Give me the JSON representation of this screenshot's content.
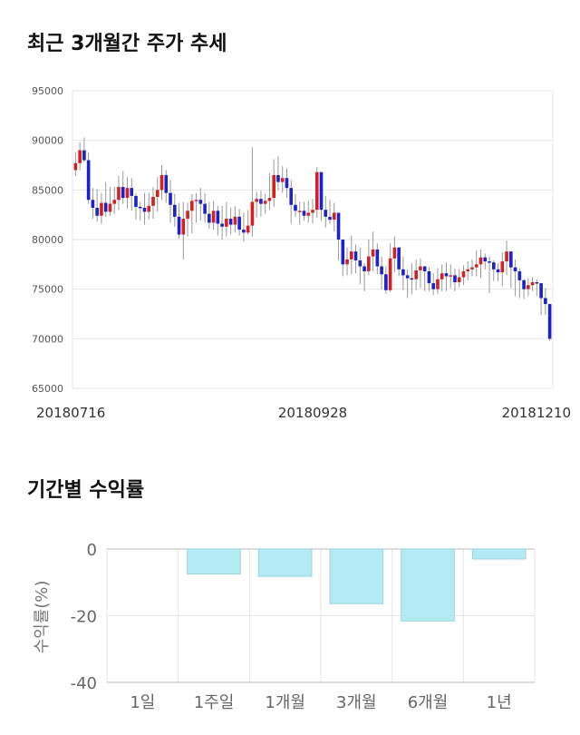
{
  "page": {
    "title_price": "최근 3개월간 주가 추세",
    "title_returns": "기간별 수익률"
  },
  "colors": {
    "up": "#d62020",
    "down": "#1a22cc",
    "wick": "#999999",
    "grid": "#e6e6e6",
    "bar_fill": "#b3ebf3",
    "bar_stroke": "#9ed3db"
  },
  "chart_data": [
    {
      "type": "candlestick",
      "title": "최근 3개월간 주가 추세",
      "ylim": [
        65000,
        95000
      ],
      "yticks": [
        95000,
        90000,
        85000,
        80000,
        75000,
        70000,
        65000
      ],
      "ytick_labels": [
        "95000",
        "90000",
        "85000",
        "80000",
        "75000",
        "70000",
        "65000"
      ],
      "xtick_labels": [
        "20180716",
        "20180928",
        "20181210"
      ],
      "xtick_index": [
        0,
        55,
        110
      ],
      "grid": true,
      "closes": [
        87700,
        89000,
        88000,
        84000,
        83200,
        82400,
        83700,
        82800,
        83600,
        84000,
        85300,
        84200,
        85200,
        84400,
        83300,
        83200,
        82800,
        83400,
        84300,
        85000,
        86500,
        84700,
        83500,
        82300,
        80500,
        82100,
        82900,
        83900,
        84000,
        83600,
        82600,
        81700,
        82900,
        81600,
        81300,
        82100,
        81500,
        82300,
        81000,
        80700,
        81400,
        83800,
        84100,
        83600,
        83900,
        84200,
        86500,
        85800,
        86200,
        85200,
        83500,
        82900,
        82900,
        82400,
        82700,
        83000,
        86800,
        83000,
        82300,
        82000,
        82700,
        80000,
        77500,
        78000,
        78800,
        77900,
        77300,
        76800,
        78300,
        79000,
        77300,
        76500,
        74900,
        78100,
        79200,
        77000,
        76400,
        76100,
        76000,
        76900,
        77300,
        76800,
        75600,
        75000,
        76000,
        76600,
        76300,
        76400,
        75700,
        76200,
        76800,
        77000,
        77200,
        77500,
        78200,
        77800,
        77700,
        77000,
        76700,
        77800,
        78800,
        77200,
        76800,
        75900,
        75000,
        75400,
        75700,
        75600,
        74100,
        73500,
        70000
      ],
      "highs": [
        88800,
        89800,
        90300,
        88800,
        85200,
        85100,
        84700,
        85800,
        85300,
        85300,
        86400,
        86900,
        86300,
        86200,
        84700,
        83800,
        84700,
        84700,
        85300,
        86300,
        87500,
        87000,
        86000,
        84600,
        83700,
        83800,
        83700,
        84600,
        84700,
        85200,
        84700,
        83800,
        83900,
        83400,
        83400,
        83800,
        83200,
        83400,
        83100,
        82700,
        83000,
        89300,
        84800,
        84900,
        84600,
        86700,
        88100,
        88400,
        87400,
        87200,
        86000,
        84600,
        83800,
        83800,
        83900,
        84100,
        87300,
        85700,
        84400,
        84000,
        83700,
        81800,
        79800,
        79200,
        80400,
        79500,
        79200,
        77600,
        80000,
        80800,
        79600,
        78300,
        77300,
        79600,
        80300,
        79100,
        78300,
        77000,
        77600,
        78000,
        78100,
        77200,
        77200,
        76600,
        77100,
        77500,
        77700,
        77500,
        77100,
        77000,
        77400,
        77800,
        78000,
        78900,
        79000,
        78600,
        78300,
        77900,
        77600,
        78700,
        79900,
        77800,
        78000,
        77100,
        76000,
        76100,
        76200,
        76000,
        74700,
        75100,
        73300
      ],
      "lows": [
        86400,
        87000,
        87800,
        83600,
        82100,
        81800,
        81600,
        82300,
        82400,
        82600,
        83000,
        83600,
        83100,
        82900,
        82000,
        81900,
        81500,
        82000,
        82100,
        82800,
        84000,
        83700,
        81700,
        81300,
        80100,
        78000,
        80300,
        80600,
        81700,
        81900,
        81700,
        81100,
        81000,
        80400,
        80000,
        80300,
        80500,
        80700,
        80400,
        79800,
        80500,
        80300,
        82200,
        82300,
        82600,
        83000,
        83300,
        85000,
        84700,
        84200,
        81600,
        82300,
        81500,
        81900,
        81700,
        81600,
        82200,
        81900,
        81200,
        81600,
        80800,
        77900,
        76300,
        76400,
        76500,
        76600,
        75500,
        74800,
        76400,
        76800,
        76500,
        75000,
        74500,
        74700,
        76700,
        76300,
        74900,
        74100,
        74500,
        74900,
        75100,
        74800,
        74800,
        74400,
        74500,
        74800,
        74800,
        75100,
        74800,
        75200,
        75400,
        75900,
        76300,
        76300,
        76100,
        77000,
        74600,
        75800,
        75800,
        75300,
        76400,
        75100,
        74300,
        74100,
        74000,
        74300,
        74800,
        74300,
        72400,
        72400,
        69800
      ]
    },
    {
      "type": "bar",
      "title": "기간별 수익률",
      "categories": [
        "1일",
        "1주일",
        "1개월",
        "3개월",
        "6개월",
        "1년"
      ],
      "values": [
        0,
        -7.5,
        -8.2,
        -16.4,
        -21.6,
        -3.0
      ],
      "ylabel": "수익률(%)",
      "ylim": [
        -40,
        0
      ],
      "yticks": [
        0,
        -20,
        -40
      ],
      "ytick_labels": [
        "0",
        "-20",
        "-40"
      ],
      "grid": true
    }
  ]
}
